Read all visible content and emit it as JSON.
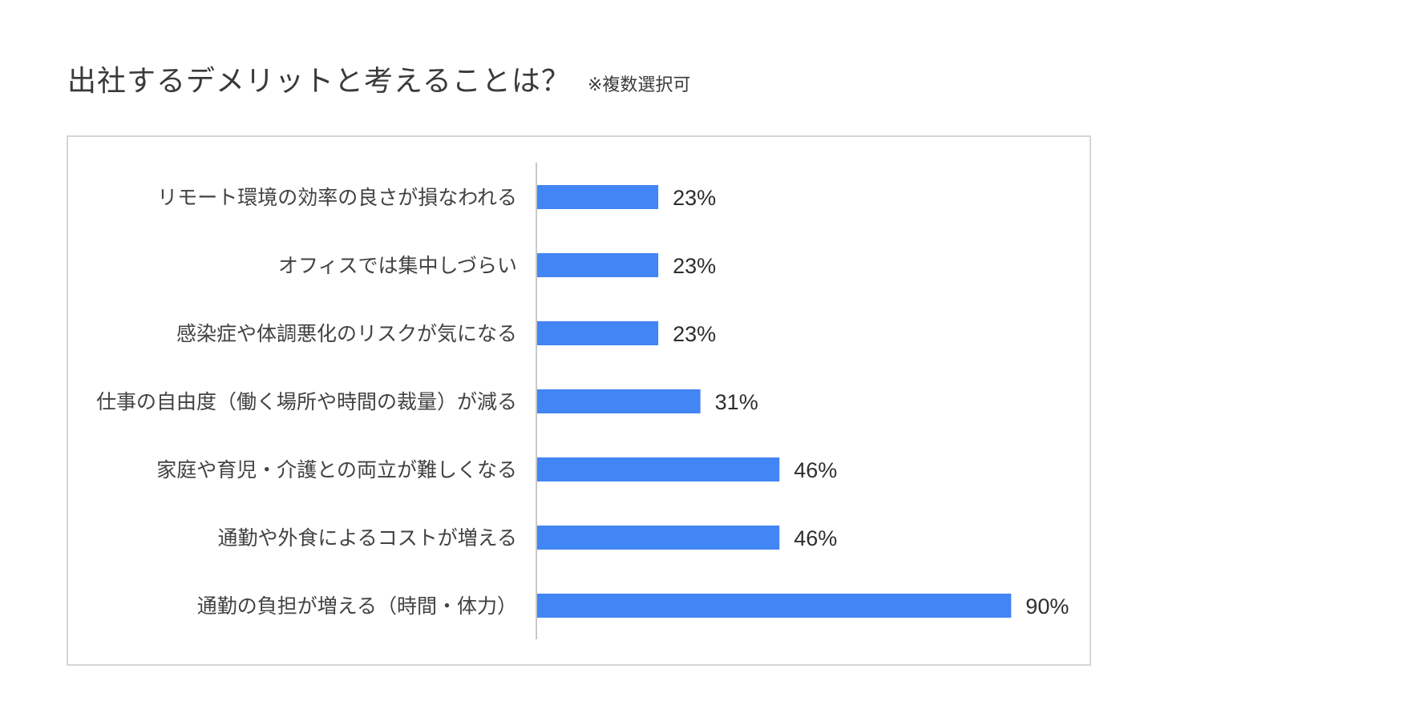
{
  "title": "出社するデメリットと考えることは？",
  "subtitle": "※複数選択可",
  "chart_data": {
    "type": "bar",
    "orientation": "horizontal",
    "categories": [
      "リモート環境の効率の良さが損なわれる",
      "オフィスでは集中しづらい",
      "感染症や体調悪化のリスクが気になる",
      "仕事の自由度（働く場所や時間の裁量）が減る",
      "家庭や育児・介護との両立が難しくなる",
      "通勤や外食によるコストが増える",
      "通勤の負担が増える（時間・体力）"
    ],
    "values": [
      23,
      23,
      23,
      31,
      46,
      46,
      90
    ],
    "value_labels": [
      "23%",
      "23%",
      "23%",
      "31%",
      "46%",
      "46%",
      "90%"
    ],
    "unit": "%",
    "xlim": [
      0,
      100
    ],
    "grid": false,
    "legend": "none",
    "bar_color": "#4285f4"
  }
}
